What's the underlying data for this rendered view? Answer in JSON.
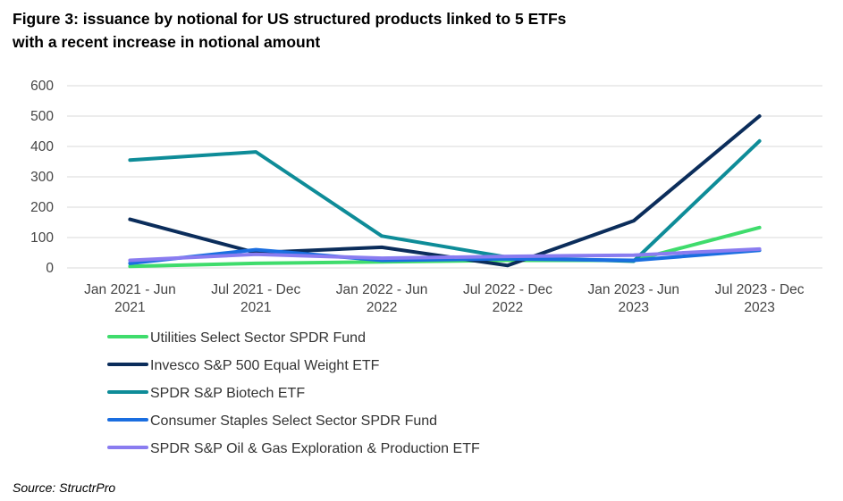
{
  "title_lines": [
    "Figure 3: issuance by notional for US structured products linked to 5 ETFs",
    "with a recent increase in notional amount"
  ],
  "source": "Source: StructrPro",
  "chart_data": {
    "type": "line",
    "categories": [
      [
        "Jan 2021 - Jun",
        "2021"
      ],
      [
        "Jul 2021 - Dec",
        "2021"
      ],
      [
        "Jan 2022 - Jun",
        "2022"
      ],
      [
        "Jul 2022 - Dec",
        "2022"
      ],
      [
        "Jan 2023 - Jun",
        "2023"
      ],
      [
        "Jul 2023 - Dec",
        "2023"
      ]
    ],
    "ylim": [
      0,
      600
    ],
    "yticks": [
      0,
      100,
      200,
      300,
      400,
      500,
      600
    ],
    "grid": true,
    "legend_position": "bottom-left",
    "series": [
      {
        "name": "Utilities Select Sector SPDR Fund",
        "color": "#3fdc6c",
        "values": [
          5,
          15,
          20,
          25,
          25,
          133
        ]
      },
      {
        "name": "Invesco S&P 500 Equal Weight ETF",
        "color": "#0b2d5b",
        "values": [
          160,
          50,
          68,
          8,
          155,
          500
        ]
      },
      {
        "name": "SPDR S&P Biotech ETF",
        "color": "#0e8c98",
        "values": [
          355,
          382,
          105,
          35,
          22,
          418
        ]
      },
      {
        "name": "Consumer Staples Select Sector SPDR Fund",
        "color": "#1a6ee0",
        "values": [
          15,
          60,
          25,
          30,
          25,
          58
        ]
      },
      {
        "name": "SPDR S&P Oil & Gas Exploration & Production ETF",
        "color": "#8a7cf0",
        "values": [
          25,
          45,
          32,
          38,
          42,
          62
        ]
      }
    ]
  }
}
